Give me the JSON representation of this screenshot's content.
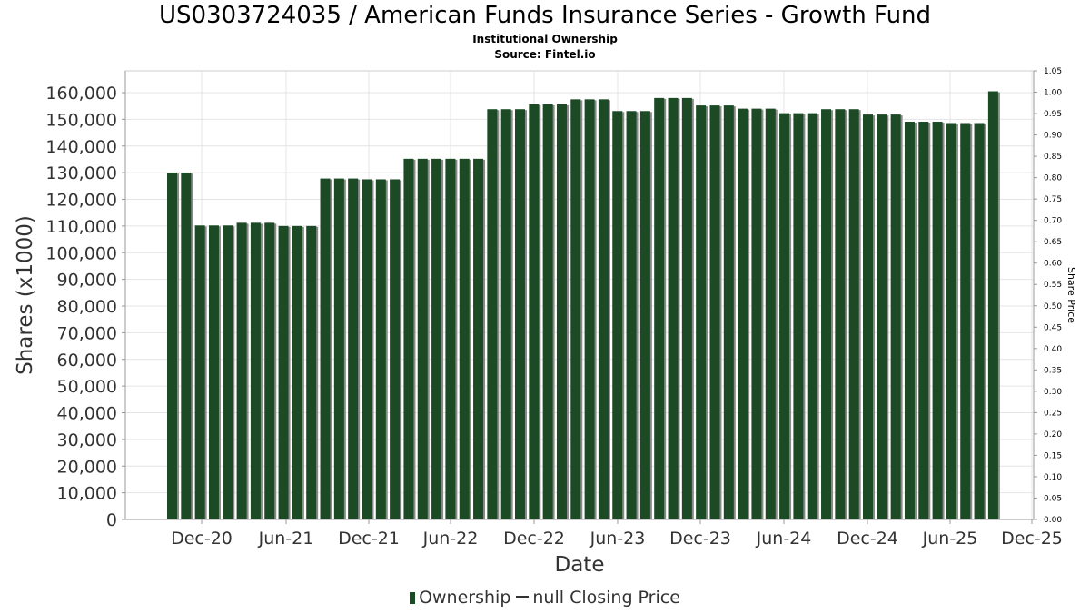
{
  "header": {
    "title": "US0303724035 / American Funds Insurance Series - Growth Fund",
    "subtitle": "Institutional Ownership",
    "source": "Source: Fintel.io"
  },
  "legend": {
    "ownership_label": "Ownership",
    "price_label": "null Closing Price"
  },
  "chart_data": {
    "type": "bar",
    "xlabel": "Date",
    "ylabel": "Shares (x1000)",
    "y2label": "Share Price",
    "x_ticks": [
      "Dec-20",
      "Jun-21",
      "Dec-21",
      "Jun-22",
      "Dec-22",
      "Jun-23",
      "Dec-23",
      "Jun-24",
      "Dec-24",
      "Jun-25",
      "Dec-25"
    ],
    "y_ticks": [
      "0",
      "10,000",
      "20,000",
      "30,000",
      "40,000",
      "50,000",
      "60,000",
      "70,000",
      "80,000",
      "90,000",
      "100,000",
      "110,000",
      "120,000",
      "130,000",
      "140,000",
      "150,000",
      "160,000"
    ],
    "y2_ticks": [
      "0.00",
      "0.05",
      "0.10",
      "0.15",
      "0.20",
      "0.25",
      "0.30",
      "0.35",
      "0.40",
      "0.45",
      "0.50",
      "0.55",
      "0.60",
      "0.65",
      "0.70",
      "0.75",
      "0.80",
      "0.85",
      "0.90",
      "0.95",
      "1.00",
      "1.05"
    ],
    "ylim": [
      0,
      160000
    ],
    "y2lim": [
      0,
      1.05
    ],
    "grid": true,
    "legend_position": "bottom",
    "series": [
      {
        "name": "Ownership",
        "color": "#1b4a25",
        "values": [
          130000,
          130000,
          110200,
          110200,
          110200,
          111200,
          111200,
          111200,
          110000,
          110000,
          110000,
          127800,
          127800,
          127800,
          127500,
          127500,
          127500,
          135200,
          135200,
          135200,
          135200,
          135200,
          135200,
          153800,
          153800,
          153800,
          155600,
          155600,
          155600,
          157500,
          157500,
          157500,
          153100,
          153100,
          153100,
          158000,
          158000,
          158000,
          155200,
          155200,
          155200,
          154000,
          154000,
          154000,
          152300,
          152300,
          152300,
          153800,
          153800,
          153800,
          151800,
          151800,
          151800,
          149100,
          149100,
          149100,
          148600,
          148600,
          148600,
          160500
        ]
      }
    ]
  }
}
